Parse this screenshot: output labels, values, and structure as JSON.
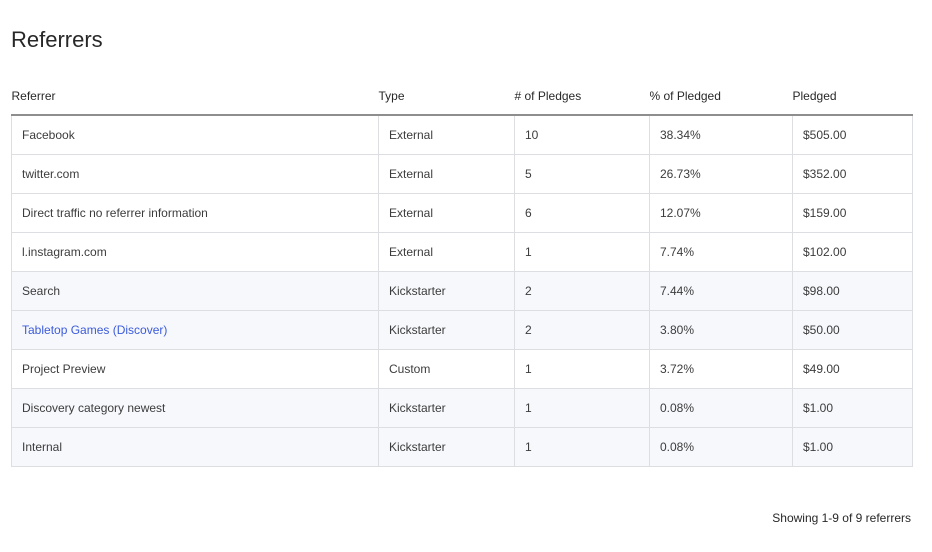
{
  "page": {
    "title": "Referrers"
  },
  "table": {
    "headers": {
      "referrer": "Referrer",
      "type": "Type",
      "pledges": "# of Pledges",
      "percent": "% of Pledged",
      "pledged": "Pledged"
    },
    "rows": [
      {
        "referrer": "Facebook",
        "type": "External",
        "pledges": "10",
        "percent": "38.34%",
        "pledged": "$505.00",
        "is_link": false,
        "shaded": false
      },
      {
        "referrer": "twitter.com",
        "type": "External",
        "pledges": "5",
        "percent": "26.73%",
        "pledged": "$352.00",
        "is_link": false,
        "shaded": false
      },
      {
        "referrer": "Direct traffic no referrer information",
        "type": "External",
        "pledges": "6",
        "percent": "12.07%",
        "pledged": "$159.00",
        "is_link": false,
        "shaded": false
      },
      {
        "referrer": "l.instagram.com",
        "type": "External",
        "pledges": "1",
        "percent": "7.74%",
        "pledged": "$102.00",
        "is_link": false,
        "shaded": false
      },
      {
        "referrer": "Search",
        "type": "Kickstarter",
        "pledges": "2",
        "percent": "7.44%",
        "pledged": "$98.00",
        "is_link": false,
        "shaded": true
      },
      {
        "referrer": "Tabletop Games (Discover)",
        "type": "Kickstarter",
        "pledges": "2",
        "percent": "3.80%",
        "pledged": "$50.00",
        "is_link": true,
        "shaded": true
      },
      {
        "referrer": "Project Preview",
        "type": "Custom",
        "pledges": "1",
        "percent": "3.72%",
        "pledged": "$49.00",
        "is_link": false,
        "shaded": false
      },
      {
        "referrer": "Discovery category newest",
        "type": "Kickstarter",
        "pledges": "1",
        "percent": "0.08%",
        "pledged": "$1.00",
        "is_link": false,
        "shaded": true
      },
      {
        "referrer": "Internal",
        "type": "Kickstarter",
        "pledges": "1",
        "percent": "0.08%",
        "pledged": "$1.00",
        "is_link": false,
        "shaded": true
      }
    ]
  },
  "footer": {
    "status": "Showing 1-9 of 9 referrers"
  },
  "colors": {
    "link": "#3b5bdb",
    "shaded_row": "#f7f8fc",
    "border": "#dcdee2",
    "header_rule": "#8e8e8e"
  }
}
